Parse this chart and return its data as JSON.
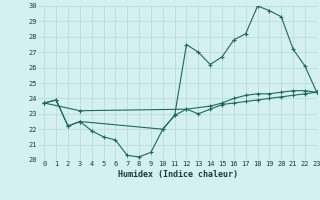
{
  "xlabel": "Humidex (Indice chaleur)",
  "bg_color": "#d4f0f0",
  "line_color": "#1a6b5a",
  "grid_color": "#b8dede",
  "ylim": [
    20,
    30
  ],
  "xlim": [
    -0.5,
    23
  ],
  "yticks": [
    20,
    21,
    22,
    23,
    24,
    25,
    26,
    27,
    28,
    29,
    30
  ],
  "xticks": [
    0,
    1,
    2,
    3,
    4,
    5,
    6,
    7,
    8,
    9,
    10,
    11,
    12,
    13,
    14,
    15,
    16,
    17,
    18,
    19,
    20,
    21,
    22,
    23
  ],
  "line1_x": [
    0,
    1,
    2,
    3,
    4,
    5,
    6,
    7,
    8,
    9,
    10,
    11,
    12,
    13,
    14,
    15,
    16,
    17,
    18,
    19,
    20,
    21,
    22,
    23
  ],
  "line1_y": [
    23.7,
    23.9,
    22.2,
    22.5,
    21.9,
    21.5,
    21.3,
    20.3,
    20.2,
    20.5,
    22.0,
    22.9,
    23.3,
    23.0,
    23.3,
    23.6,
    23.7,
    23.8,
    23.9,
    24.0,
    24.1,
    24.2,
    24.3,
    24.4
  ],
  "line2_x": [
    0,
    1,
    2,
    3,
    10,
    11,
    12,
    13,
    14,
    15,
    16,
    17,
    18,
    19,
    20,
    21,
    22,
    23
  ],
  "line2_y": [
    23.7,
    23.9,
    22.2,
    22.5,
    22.0,
    22.9,
    27.5,
    27.0,
    26.2,
    26.7,
    27.8,
    28.2,
    30.0,
    29.7,
    29.3,
    27.2,
    26.1,
    24.4
  ],
  "line3_x": [
    0,
    3,
    12,
    14,
    15,
    16,
    17,
    18,
    19,
    20,
    21,
    22,
    23
  ],
  "line3_y": [
    23.7,
    23.2,
    23.3,
    23.5,
    23.7,
    24.0,
    24.2,
    24.3,
    24.3,
    24.4,
    24.5,
    24.5,
    24.4
  ]
}
